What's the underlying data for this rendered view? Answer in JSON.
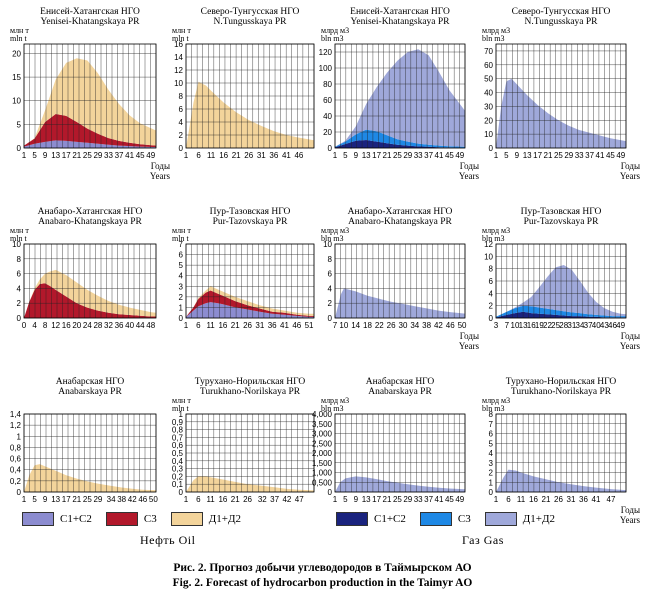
{
  "colors": {
    "oil_c1c2": "#8c8cd0",
    "oil_c3": "#b2182b",
    "oil_d": "#f3d49b",
    "gas_c1c2": "#1a237e",
    "gas_c3": "#1e88e5",
    "gas_d": "#9fa8da"
  },
  "legend": {
    "oil": [
      {
        "label": "C1+C2",
        "color_key": "oil_c1c2"
      },
      {
        "label": "C3",
        "color_key": "oil_c3"
      },
      {
        "label": "Д1+Д2",
        "color_key": "oil_d"
      }
    ],
    "gas": [
      {
        "label": "C1+C2",
        "color_key": "gas_c1c2"
      },
      {
        "label": "C3",
        "color_key": "gas_c3"
      },
      {
        "label": "Д1+Д2",
        "color_key": "gas_d"
      }
    ],
    "oil_group_label": "Нефть  Oil",
    "gas_group_label": "Газ  Gas"
  },
  "caption": {
    "ru": "Рис. 2. Прогноз добычи углеводородов в Таймырском АО",
    "en": "Fig. 2. Forecast of hydrocarbon production in the Taimyr AO"
  },
  "chart_data": [
    {
      "type": "area",
      "stacked": true,
      "title": "Енисей-Хатангская НГО",
      "subtitle": "Yenisei-Khatangskaya PR",
      "ylabel": "млн т",
      "ylabel2": "mln t",
      "xlabel": "Годы",
      "xlabel2": "Years",
      "ylim": [
        0,
        22
      ],
      "yticks": [
        0,
        5,
        10,
        15,
        20
      ],
      "xlim": [
        1,
        51
      ],
      "xticks": [
        1,
        5,
        9,
        13,
        17,
        21,
        25,
        29,
        33,
        37,
        41,
        45,
        49
      ],
      "x": [
        1,
        5,
        9,
        13,
        17,
        21,
        25,
        29,
        33,
        37,
        41,
        45,
        51
      ],
      "series": [
        {
          "name": "C1+C2",
          "color_key": "oil_c1c2",
          "values": [
            0.3,
            0.9,
            1.3,
            1.6,
            1.5,
            1.3,
            1.1,
            0.9,
            0.7,
            0.5,
            0.4,
            0.3,
            0.2
          ]
        },
        {
          "name": "C3",
          "color_key": "oil_c3",
          "values": [
            0.2,
            1.1,
            4.2,
            5.6,
            5.3,
            4.2,
            3.0,
            2.1,
            1.4,
            1.0,
            0.7,
            0.5,
            0.3
          ]
        },
        {
          "name": "Д1+Д2",
          "color_key": "oil_d",
          "values": [
            0,
            0.1,
            2.5,
            7.3,
            11.2,
            13.5,
            14.4,
            12.8,
            10.2,
            7.8,
            5.8,
            4.4,
            3.2
          ]
        }
      ]
    },
    {
      "type": "area",
      "stacked": true,
      "title": "Северо-Тунгусская НГО",
      "subtitle": "N.Tungusskaya PR",
      "ylabel": "млн т",
      "ylabel2": "mln t",
      "xlabel": "",
      "xlabel2": "",
      "ylim": [
        0,
        16
      ],
      "yticks": [
        0,
        2,
        4,
        6,
        8,
        10,
        12,
        14,
        16
      ],
      "xlim": [
        1,
        52
      ],
      "xticks": [
        1,
        6,
        11,
        16,
        21,
        26,
        31,
        36,
        41,
        46
      ],
      "x": [
        1,
        4,
        6,
        9,
        11,
        16,
        21,
        26,
        31,
        36,
        41,
        46,
        52
      ],
      "series": [
        {
          "name": "Д1+Д2",
          "color_key": "oil_d",
          "values": [
            0,
            7,
            10.2,
            9.6,
            8.8,
            7.0,
            5.5,
            4.3,
            3.4,
            2.6,
            2.0,
            1.6,
            1.2
          ]
        }
      ]
    },
    {
      "type": "area",
      "stacked": true,
      "title": "Енисей-Хатангская НГО",
      "subtitle": "Yenisei-Khatangskaya PR",
      "ylabel": "млрд м3",
      "ylabel2": "bln m3",
      "xlabel": "Годы",
      "xlabel2": "Years",
      "ylim": [
        0,
        130
      ],
      "yticks": [
        0,
        20,
        40,
        60,
        80,
        100,
        120
      ],
      "xlim": [
        1,
        51
      ],
      "xticks": [
        1,
        5,
        9,
        13,
        17,
        21,
        25,
        29,
        33,
        37,
        41,
        45,
        49
      ],
      "x": [
        1,
        5,
        9,
        13,
        17,
        21,
        25,
        29,
        33,
        37,
        41,
        45,
        51
      ],
      "series": [
        {
          "name": "C1+C2",
          "color_key": "gas_c1c2",
          "values": [
            1,
            5,
            9,
            10,
            8,
            6,
            4,
            3,
            2,
            1.5,
            1,
            0.8,
            0.5
          ]
        },
        {
          "name": "C3",
          "color_key": "gas_c3",
          "values": [
            0.5,
            3,
            8,
            13,
            13,
            10,
            7,
            5,
            3.5,
            2.5,
            2,
            1.5,
            1
          ]
        },
        {
          "name": "Д1+Д2",
          "color_key": "gas_d",
          "values": [
            0,
            1,
            10,
            32,
            55,
            78,
            98,
            112,
            118,
            112,
            92,
            70,
            45
          ]
        }
      ]
    },
    {
      "type": "area",
      "stacked": true,
      "title": "Северо-Тунгусская НГО",
      "subtitle": "N.Tungusskaya PR",
      "ylabel": "млрд м3",
      "ylabel2": "bln m3",
      "xlabel": "Годы",
      "xlabel2": "Years",
      "ylim": [
        0,
        75
      ],
      "yticks": [
        0,
        10,
        20,
        30,
        40,
        50,
        60,
        70
      ],
      "xlim": [
        1,
        51
      ],
      "xticks": [
        1,
        5,
        9,
        13,
        17,
        21,
        25,
        29,
        33,
        37,
        41,
        45,
        49
      ],
      "x": [
        1,
        3,
        5,
        7,
        9,
        13,
        17,
        21,
        25,
        29,
        33,
        37,
        41,
        45,
        51
      ],
      "series": [
        {
          "name": "Д1+Д2",
          "color_key": "gas_d",
          "values": [
            0,
            30,
            48,
            50,
            46,
            38,
            31,
            25,
            20,
            16,
            13,
            11,
            9,
            7,
            5
          ]
        }
      ]
    },
    {
      "type": "area",
      "stacked": true,
      "title": "Анабаро-Хатангская НГО",
      "subtitle": "Anabaro-Khatangskaya PR",
      "ylabel": "млн т",
      "ylabel2": "mln t",
      "xlabel": "",
      "xlabel2": "",
      "ylim": [
        0,
        10
      ],
      "yticks": [
        0,
        2,
        4,
        6,
        8,
        10
      ],
      "xlim": [
        0,
        50
      ],
      "xticks": [
        0,
        4,
        8,
        12,
        16,
        20,
        24,
        28,
        32,
        36,
        40,
        44,
        48
      ],
      "x": [
        0,
        2,
        4,
        6,
        8,
        10,
        12,
        16,
        20,
        24,
        28,
        32,
        36,
        40,
        44,
        48,
        50
      ],
      "series": [
        {
          "name": "C3",
          "color_key": "oil_c3",
          "values": [
            0,
            2.2,
            3.8,
            4.6,
            4.7,
            4.3,
            3.8,
            2.9,
            2.0,
            1.4,
            1.0,
            0.7,
            0.5,
            0.4,
            0.3,
            0.2,
            0.2
          ]
        },
        {
          "name": "Д1+Д2",
          "color_key": "oil_d",
          "values": [
            0,
            0,
            0.2,
            0.6,
            1.3,
            2.0,
            2.7,
            2.9,
            2.8,
            2.4,
            2.0,
            1.6,
            1.3,
            1.0,
            0.8,
            0.6,
            0.5
          ]
        }
      ]
    },
    {
      "type": "area",
      "stacked": true,
      "title": "Пур-Тазовская НГО",
      "subtitle": "Pur-Tazovskaya PR",
      "ylabel": "млн т",
      "ylabel2": "mln t",
      "xlabel": "",
      "xlabel2": "",
      "ylim": [
        0,
        7
      ],
      "yticks": [
        0,
        1,
        2,
        3,
        4,
        5,
        6,
        7
      ],
      "xlim": [
        1,
        53
      ],
      "xticks": [
        1,
        6,
        11,
        16,
        21,
        26,
        31,
        36,
        41,
        46,
        51
      ],
      "x": [
        1,
        4,
        6,
        9,
        11,
        14,
        16,
        21,
        26,
        31,
        36,
        41,
        46,
        51,
        53
      ],
      "series": [
        {
          "name": "C1+C2",
          "color_key": "oil_c1c2",
          "values": [
            0.1,
            0.7,
            1.1,
            1.4,
            1.5,
            1.4,
            1.3,
            1.0,
            0.8,
            0.6,
            0.4,
            0.3,
            0.2,
            0.1,
            0.1
          ]
        },
        {
          "name": "C3",
          "color_key": "oil_c3",
          "values": [
            0,
            0.3,
            0.7,
            1.0,
            1.1,
            0.9,
            0.8,
            0.6,
            0.4,
            0.3,
            0.2,
            0.2,
            0.1,
            0.1,
            0.1
          ]
        },
        {
          "name": "Д1+Д2",
          "color_key": "oil_d",
          "values": [
            0,
            0,
            0.1,
            0.2,
            0.4,
            0.4,
            0.4,
            0.4,
            0.4,
            0.3,
            0.3,
            0.2,
            0.2,
            0.2,
            0.2
          ]
        }
      ]
    },
    {
      "type": "area",
      "stacked": true,
      "title": "Анабаро-Хатангская НГО",
      "subtitle": "Anabaro-Khatangskaya PR",
      "ylabel": "млрд м3",
      "ylabel2": "bln m3",
      "xlabel": "Годы",
      "xlabel2": "Years",
      "ylim": [
        0,
        10
      ],
      "yticks": [
        0,
        2,
        4,
        6,
        8,
        10
      ],
      "xlim": [
        7,
        51
      ],
      "xticks": [
        7,
        10,
        14,
        18,
        22,
        26,
        30,
        34,
        38,
        42,
        46,
        50
      ],
      "x": [
        7,
        9,
        10,
        12,
        14,
        18,
        22,
        26,
        30,
        34,
        38,
        42,
        46,
        51
      ],
      "series": [
        {
          "name": "Д1+Д2",
          "color_key": "gas_d",
          "values": [
            0,
            3.2,
            4.0,
            3.8,
            3.6,
            3.0,
            2.6,
            2.2,
            1.9,
            1.6,
            1.3,
            1.0,
            0.8,
            0.6
          ]
        }
      ]
    },
    {
      "type": "area",
      "stacked": true,
      "title": "Пур-Тазовская НГО",
      "subtitle": "Pur-Tazovskaya PR",
      "ylabel": "млрд м3",
      "ylabel2": "bln m3",
      "xlabel": "Годы",
      "xlabel2": "Years",
      "ylim": [
        0,
        12
      ],
      "yticks": [
        0,
        2,
        4,
        6,
        8,
        10,
        12
      ],
      "xlim": [
        3,
        51
      ],
      "xticks": [
        3,
        7,
        10,
        13,
        16,
        19,
        22,
        25,
        28,
        31,
        34,
        37,
        40,
        43,
        46,
        49
      ],
      "x": [
        3,
        7,
        10,
        13,
        16,
        19,
        22,
        25,
        28,
        31,
        34,
        37,
        40,
        43,
        46,
        49,
        51
      ],
      "series": [
        {
          "name": "C1+C2",
          "color_key": "gas_c1c2",
          "values": [
            0.1,
            0.5,
            0.8,
            1.0,
            0.8,
            0.7,
            0.6,
            0.5,
            0.4,
            0.3,
            0.3,
            0.2,
            0.2,
            0.1,
            0.1,
            0.1,
            0.1
          ]
        },
        {
          "name": "C3",
          "color_key": "gas_c3",
          "values": [
            0.1,
            0.5,
            0.8,
            1.0,
            1.1,
            1.0,
            0.9,
            0.8,
            0.7,
            0.6,
            0.5,
            0.4,
            0.3,
            0.3,
            0.2,
            0.2,
            0.2
          ]
        },
        {
          "name": "Д1+Д2",
          "color_key": "gas_d",
          "values": [
            0,
            0,
            0.1,
            0.5,
            1.5,
            3.3,
            5.2,
            6.9,
            7.5,
            6.9,
            5.2,
            3.5,
            2.1,
            1.2,
            0.7,
            0.4,
            0.3
          ]
        }
      ]
    },
    {
      "type": "area",
      "stacked": true,
      "title": "Анабарская НГО",
      "subtitle": "Anabarskaya PR",
      "ylabel": "",
      "ylabel2": "",
      "xlabel": "",
      "xlabel2": "",
      "ylim": [
        0,
        1.4
      ],
      "yticks": [
        0,
        0.2,
        0.4,
        0.6,
        0.8,
        1,
        1.2,
        1.4
      ],
      "yticklabels": [
        "0",
        "0,2",
        "0,4",
        "0,6",
        "0,8",
        "1",
        "1,2",
        "1,4"
      ],
      "xlim": [
        1,
        51
      ],
      "xticks": [
        1,
        5,
        9,
        13,
        17,
        21,
        25,
        29,
        34,
        38,
        42,
        46,
        50
      ],
      "x": [
        1,
        3,
        5,
        7,
        9,
        13,
        17,
        21,
        25,
        29,
        34,
        38,
        42,
        46,
        51
      ],
      "series": [
        {
          "name": "Д1+Д2",
          "color_key": "oil_d",
          "values": [
            0,
            0.3,
            0.48,
            0.5,
            0.46,
            0.38,
            0.3,
            0.24,
            0.19,
            0.15,
            0.11,
            0.08,
            0.06,
            0.04,
            0.03
          ]
        }
      ]
    },
    {
      "type": "area",
      "stacked": true,
      "title": "Турухано-Норильская НГО",
      "subtitle": "Turukhano-Norilskaya PR",
      "ylabel": "млн т",
      "ylabel2": "mln t",
      "xlabel": "",
      "xlabel2": "",
      "ylim": [
        0,
        1
      ],
      "yticks": [
        0,
        0.1,
        0.2,
        0.3,
        0.4,
        0.5,
        0.6,
        0.7,
        0.8,
        0.9,
        1
      ],
      "yticklabels": [
        "0",
        "0,1",
        "0,2",
        "0,3",
        "0,4",
        "0,5",
        "0,6",
        "0,7",
        "0,8",
        "0,9",
        "1"
      ],
      "xlim": [
        1,
        53
      ],
      "xticks": [
        1,
        6,
        11,
        16,
        21,
        26,
        32,
        37,
        42,
        47
      ],
      "x": [
        1,
        4,
        6,
        9,
        11,
        16,
        21,
        26,
        32,
        37,
        42,
        47,
        53
      ],
      "series": [
        {
          "name": "Д1+Д2",
          "color_key": "oil_d",
          "values": [
            0,
            0.15,
            0.2,
            0.2,
            0.19,
            0.16,
            0.13,
            0.1,
            0.08,
            0.06,
            0.04,
            0.03,
            0.02
          ]
        }
      ]
    },
    {
      "type": "area",
      "stacked": true,
      "title": "Анабарская НГО",
      "subtitle": "Anabarskaya PR",
      "ylabel": "млрд м3",
      "ylabel2": "bln m3",
      "xlabel": "",
      "xlabel2": "",
      "ylim": [
        0,
        4
      ],
      "yticks": [
        0,
        0.5,
        1,
        1.5,
        2,
        2.5,
        3,
        3.5,
        4
      ],
      "yticklabels": [
        "0",
        "0,500",
        "1,000",
        "1,500",
        "2,000",
        "2,500",
        "3,000",
        "3,500",
        "4,000"
      ],
      "xlim": [
        1,
        51
      ],
      "xticks": [
        1,
        5,
        9,
        13,
        17,
        21,
        25,
        29,
        33,
        37,
        41,
        45,
        49
      ],
      "x": [
        1,
        3,
        5,
        9,
        13,
        17,
        21,
        25,
        29,
        33,
        37,
        41,
        45,
        51
      ],
      "series": [
        {
          "name": "Д1+Д2",
          "color_key": "gas_d",
          "values": [
            0,
            0.5,
            0.7,
            0.8,
            0.75,
            0.66,
            0.56,
            0.47,
            0.4,
            0.33,
            0.27,
            0.22,
            0.18,
            0.14
          ]
        }
      ]
    },
    {
      "type": "area",
      "stacked": true,
      "title": "Турухано-Норильская НГО",
      "subtitle": "Turukhano-Norilskaya PR",
      "ylabel": "млрд м3",
      "ylabel2": "bln m3",
      "xlabel": "Годы",
      "xlabel2": "Years",
      "ylim": [
        0,
        8
      ],
      "yticks": [
        0,
        1,
        2,
        3,
        4,
        5,
        6,
        7,
        8
      ],
      "xlim": [
        1,
        53
      ],
      "xticks": [
        1,
        6,
        11,
        16,
        21,
        26,
        31,
        36,
        41,
        47
      ],
      "x": [
        1,
        4,
        6,
        9,
        11,
        16,
        21,
        26,
        31,
        36,
        41,
        47,
        53
      ],
      "series": [
        {
          "name": "Д1+Д2",
          "color_key": "gas_d",
          "values": [
            0,
            1.5,
            2.3,
            2.2,
            2.0,
            1.6,
            1.3,
            1.0,
            0.8,
            0.6,
            0.45,
            0.3,
            0.2
          ]
        }
      ]
    }
  ]
}
